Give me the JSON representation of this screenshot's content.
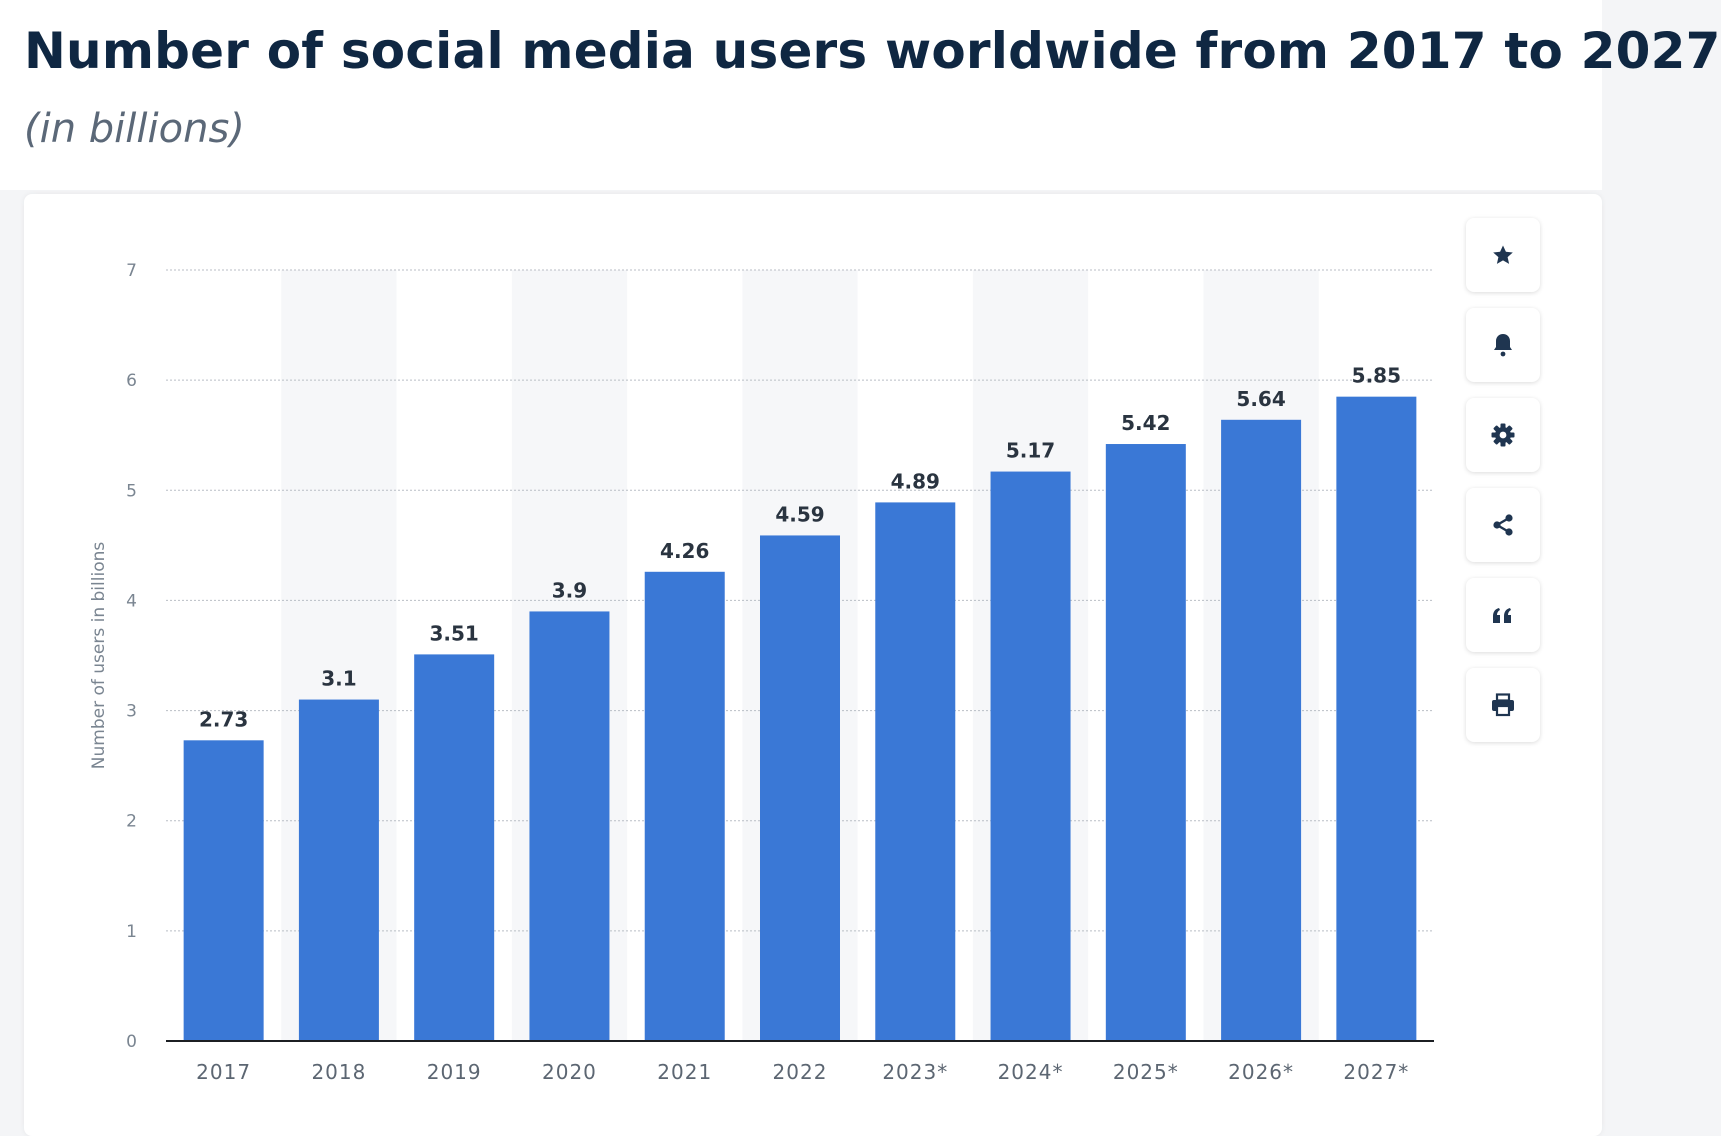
{
  "header": {
    "title": "Number of social media users worldwide from 2017 to 2027",
    "subtitle": "(in billions)"
  },
  "toolbar": [
    {
      "name": "star-icon"
    },
    {
      "name": "bell-icon"
    },
    {
      "name": "gear-icon"
    },
    {
      "name": "share-icon"
    },
    {
      "name": "quote-icon"
    },
    {
      "name": "print-icon"
    }
  ],
  "colors": {
    "bar": "#3a78d6",
    "band": "#f6f7f9",
    "grid": "#b9bec5",
    "axis": "#1c1f23"
  },
  "chart_data": {
    "type": "bar",
    "categories": [
      "2017",
      "2018",
      "2019",
      "2020",
      "2021",
      "2022",
      "2023*",
      "2024*",
      "2025*",
      "2026*",
      "2027*"
    ],
    "values": [
      2.73,
      3.1,
      3.51,
      3.9,
      4.26,
      4.59,
      4.89,
      5.17,
      5.42,
      5.64,
      5.85
    ],
    "value_labels": [
      "2.73",
      "3.1",
      "3.51",
      "3.9",
      "4.26",
      "4.59",
      "4.89",
      "5.17",
      "5.42",
      "5.64",
      "5.85"
    ],
    "ylabel": "Number of users in billions",
    "ylim": [
      0,
      7
    ],
    "yticks": [
      "0",
      "1",
      "2",
      "3",
      "4",
      "5",
      "6",
      "7"
    ],
    "grid": true,
    "alternating_bands": true
  }
}
